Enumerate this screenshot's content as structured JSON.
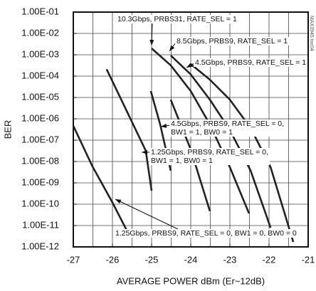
{
  "chart_data": {
    "type": "line",
    "y_label": "BER",
    "x_label": "AVERAGE POWER dBm (Er~12dB)",
    "note": "MAX3945 toc04",
    "log_y": true,
    "grid": true,
    "xlim": [
      -27,
      -21
    ],
    "xticks": [
      -27,
      -26,
      -25,
      -24,
      -23,
      -22,
      -21
    ],
    "xgrid": [
      -26.5,
      -25.5,
      -24.5,
      -23.5,
      -22.5,
      -21.5
    ],
    "ylim": [
      1e-12,
      0.1
    ],
    "yticks": [
      {
        "value": 1e-12,
        "label": "1.00E-12"
      },
      {
        "value": 1e-11,
        "label": "1.00E-11"
      },
      {
        "value": 1e-10,
        "label": "1.00E-10"
      },
      {
        "value": 1e-09,
        "label": "1.00E-09"
      },
      {
        "value": 1e-08,
        "label": "1.00E-08"
      },
      {
        "value": 1e-07,
        "label": "1.00E-07"
      },
      {
        "value": 1e-06,
        "label": "1.00E-06"
      },
      {
        "value": 1e-05,
        "label": "1.00E-05"
      },
      {
        "value": 0.0001,
        "label": "1.00E-04"
      },
      {
        "value": 0.001,
        "label": "1.00E-03"
      },
      {
        "value": 0.01,
        "label": "1.00E-02"
      },
      {
        "value": 0.1,
        "label": "1.00E-01"
      }
    ],
    "series": [
      {
        "name": "10.3Gbps, PRBS31, RATE_SEL = 1",
        "color": "#222222",
        "x": [
          -25.0,
          -24.51,
          -24.0,
          -23.51,
          -23.0,
          -22.51
        ],
        "values": [
          0.002,
          0.00032,
          2e-05,
          5.4e-07,
          5.4e-09,
          3.7e-11
        ]
      },
      {
        "name": "8.5Gbps, PRBS9, RATE_SEL = 1",
        "color": "#222222",
        "x": [
          -24.51,
          -24.0,
          -23.51,
          -23.0,
          -22.47,
          -21.96
        ],
        "values": [
          0.00093,
          0.00012,
          7.9e-06,
          3e-07,
          3.7e-09,
          7.9e-12
        ]
      },
      {
        "name": "4.5Gbps, PRBS9, RATE_SEL = 1",
        "color": "#222222",
        "x": [
          -24.0,
          -23.51,
          -23.0,
          -22.47,
          -21.96,
          -21.38
        ],
        "values": [
          0.00037,
          6.8e-05,
          7.9e-06,
          3.7e-07,
          5.4e-09,
          1.7e-12
        ]
      },
      {
        "name": "4.5Gbps, PRBS9, RATE_SEL = 0,\nBW1 = 1, BW0 = 1",
        "color": "#222222",
        "x": [
          -25.02,
          -24.78,
          -24.51
        ],
        "values": [
          2e-05,
          5.4e-07,
          3.7e-09
        ]
      },
      {
        "color": "#222222",
        "x": [
          -24.51,
          -24.0,
          -23.51
        ],
        "values": [
          7.9e-06,
          3.7e-08,
          4.7e-11
        ]
      },
      {
        "name": "1.25Gbps, PRBS9, RATE_SEL = 0,\nBW1 = 1, BW0 = 1",
        "color": "#222222",
        "x": [
          -26.15,
          -25.6,
          -25.15,
          -25.0
        ],
        "values": [
          0.00021,
          1.7e-06,
          3.2e-08,
          4.3e-10
        ]
      },
      {
        "name": "1.25Gbps, PRBS9, RATE_SEL = 0, BW1 = 0, BW0 = 0",
        "color": "#222222",
        "x": [
          -27.0,
          -26.51,
          -26.0,
          -25.56
        ],
        "values": [
          4.7e-07,
          5.9e-09,
          1.2e-10,
          3.2e-12
        ]
      }
    ]
  }
}
